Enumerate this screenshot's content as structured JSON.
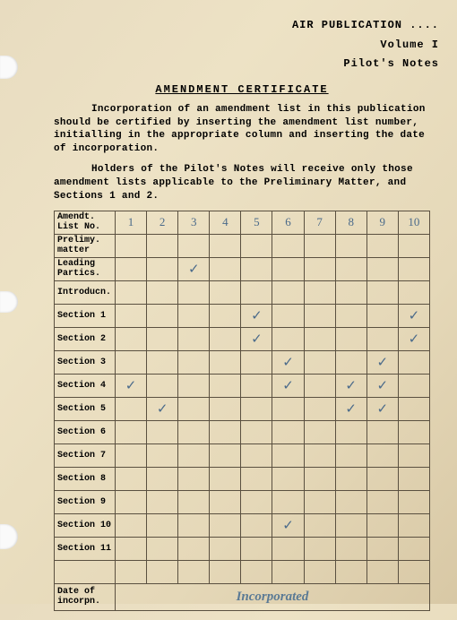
{
  "header": {
    "line1": "AIR  PUBLICATION ....",
    "line2": "Volume I",
    "line3": "Pilot's Notes"
  },
  "title": "AMENDMENT  CERTIFICATE",
  "para1": "Incorporation of an amendment list in this publication should be certified by inserting the amendment list number, initialling in the appropriate column and inserting the date of incorporation.",
  "para2": "Holders of the Pilot's Notes will receive only those amendment lists applicable to the Preliminary Matter, and Sections 1 and 2.",
  "columns": [
    "1",
    "2",
    "3",
    "4",
    "5",
    "6",
    "7",
    "8",
    "9",
    "10"
  ],
  "row_header": "Amendt. List No.",
  "rows": [
    {
      "label": "Prelimy. matter",
      "cells": [
        "",
        "",
        "",
        "",
        "",
        "",
        "",
        "",
        "",
        ""
      ]
    },
    {
      "label": "Leading Partics.",
      "cells": [
        "",
        "",
        "✓",
        "",
        "",
        "",
        "",
        "",
        "",
        ""
      ]
    },
    {
      "label": "Introducn.",
      "cells": [
        "",
        "",
        "",
        "",
        "",
        "",
        "",
        "",
        "",
        ""
      ]
    },
    {
      "label": "Section 1",
      "cells": [
        "",
        "",
        "",
        "",
        "✓",
        "",
        "",
        "",
        "",
        "✓"
      ]
    },
    {
      "label": "Section 2",
      "cells": [
        "",
        "",
        "",
        "",
        "✓",
        "",
        "",
        "",
        "",
        "✓"
      ]
    },
    {
      "label": "Section 3",
      "cells": [
        "",
        "",
        "",
        "",
        "",
        "✓",
        "",
        "",
        "✓",
        ""
      ]
    },
    {
      "label": "Section 4",
      "cells": [
        "✓",
        "",
        "",
        "",
        "",
        "✓",
        "",
        "✓",
        "✓",
        ""
      ]
    },
    {
      "label": "Section 5",
      "cells": [
        "",
        "✓",
        "",
        "",
        "",
        "",
        "",
        "✓",
        "✓",
        ""
      ]
    },
    {
      "label": "Section 6",
      "cells": [
        "",
        "",
        "",
        "",
        "",
        "",
        "",
        "",
        "",
        ""
      ]
    },
    {
      "label": "Section 7",
      "cells": [
        "",
        "",
        "",
        "",
        "",
        "",
        "",
        "",
        "",
        ""
      ]
    },
    {
      "label": "Section 8",
      "cells": [
        "",
        "",
        "",
        "",
        "",
        "",
        "",
        "",
        "",
        ""
      ]
    },
    {
      "label": "Section 9",
      "cells": [
        "",
        "",
        "",
        "",
        "",
        "",
        "",
        "",
        "",
        ""
      ]
    },
    {
      "label": "Section 10",
      "cells": [
        "",
        "",
        "",
        "",
        "",
        "✓",
        "",
        "",
        "",
        ""
      ]
    },
    {
      "label": "Section 11",
      "cells": [
        "",
        "",
        "",
        "",
        "",
        "",
        "",
        "",
        "",
        ""
      ]
    },
    {
      "label": "",
      "cells": [
        "",
        "",
        "",
        "",
        "",
        "",
        "",
        "",
        "",
        ""
      ]
    }
  ],
  "footer_label": "Date of incorpn.",
  "footer_text": "Incorporated",
  "colors": {
    "ink": "#4a6a8a",
    "border": "#5a5040"
  }
}
